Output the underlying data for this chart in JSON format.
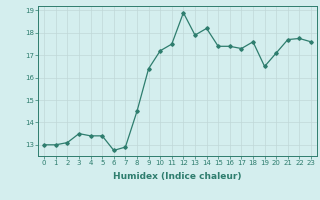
{
  "x": [
    0,
    1,
    2,
    3,
    4,
    5,
    6,
    7,
    8,
    9,
    10,
    11,
    12,
    13,
    14,
    15,
    16,
    17,
    18,
    19,
    20,
    21,
    22,
    23
  ],
  "y": [
    13.0,
    13.0,
    13.1,
    13.5,
    13.4,
    13.4,
    12.75,
    12.9,
    14.5,
    16.4,
    17.2,
    17.5,
    18.9,
    17.9,
    18.2,
    17.4,
    17.4,
    17.3,
    17.6,
    16.5,
    17.1,
    17.7,
    17.75,
    17.6
  ],
  "line_color": "#2e7d6e",
  "marker": "D",
  "marker_size": 1.8,
  "bg_color": "#d4eeee",
  "grid_color": "#c0d8d8",
  "xlabel": "Humidex (Indice chaleur)",
  "ylim_min": 12.5,
  "ylim_max": 19.2,
  "xlim_min": -0.5,
  "xlim_max": 23.5,
  "yticks": [
    13,
    14,
    15,
    16,
    17,
    18,
    19
  ],
  "xticks": [
    0,
    1,
    2,
    3,
    4,
    5,
    6,
    7,
    8,
    9,
    10,
    11,
    12,
    13,
    14,
    15,
    16,
    17,
    18,
    19,
    20,
    21,
    22,
    23
  ],
  "tick_fontsize": 5.0,
  "xlabel_fontsize": 6.5,
  "line_width": 0.9
}
